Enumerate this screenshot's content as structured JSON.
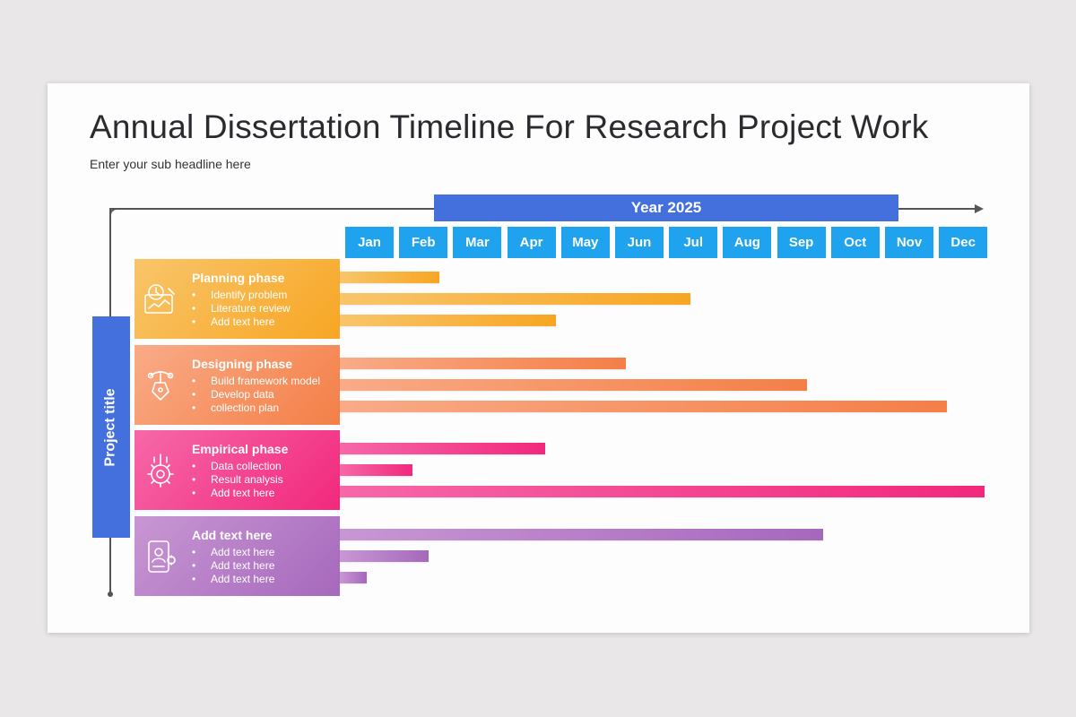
{
  "title": "Annual Dissertation Timeline For Research Project Work",
  "subtitle": "Enter your sub headline here",
  "year_label": "Year 2025",
  "project_label": "Project title",
  "months": [
    "Jan",
    "Feb",
    "Mar",
    "Apr",
    "May",
    "Jun",
    "Jul",
    "Aug",
    "Sep",
    "Oct",
    "Nov",
    "Dec"
  ],
  "phases": [
    {
      "name": "Planning phase",
      "icon": "planning-chart-icon",
      "colors": [
        "#f9c56a",
        "#f7a623"
      ],
      "items": [
        "Identify problem",
        "Literature review",
        "Add text here"
      ],
      "bars_end_month": [
        1.75,
        6.4,
        3.9
      ]
    },
    {
      "name": "Designing phase",
      "icon": "pen-tool-icon",
      "colors": [
        "#f9ab87",
        "#f47f47"
      ],
      "items": [
        "Build framework model",
        "Develop data",
        "collection plan"
      ],
      "bars_end_month": [
        5.2,
        8.55,
        11.15
      ]
    },
    {
      "name": "Empirical phase",
      "icon": "gear-chart-icon",
      "colors": [
        "#f668a8",
        "#f2287c"
      ],
      "items": [
        "Data collection",
        "Result analysis",
        "Add text here"
      ],
      "bars_end_month": [
        3.7,
        1.25,
        11.85
      ]
    },
    {
      "name": "Add text here",
      "icon": "user-profile-icon",
      "colors": [
        "#c897d3",
        "#a668bc"
      ],
      "items": [
        "Add text here",
        "Add text here",
        "Add text here"
      ],
      "bars_end_month": [
        8.85,
        1.55,
        0.4
      ]
    }
  ]
}
